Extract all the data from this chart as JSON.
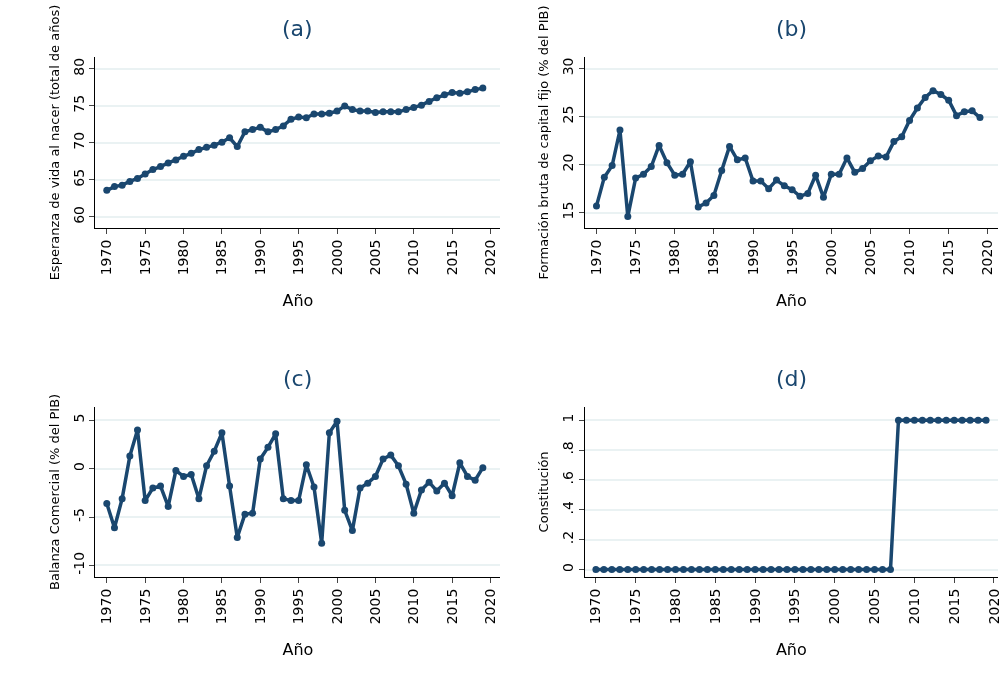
{
  "chart_data": [
    {
      "type": "line",
      "title": "(a)",
      "xlabel": "Año",
      "ylabel": "Esperanza de vida al nacer (total de años)",
      "color": "#1a476f",
      "marker": "circle",
      "grid": "y",
      "x": [
        1970,
        1971,
        1972,
        1973,
        1974,
        1975,
        1976,
        1977,
        1978,
        1979,
        1980,
        1981,
        1982,
        1983,
        1984,
        1985,
        1986,
        1987,
        1988,
        1989,
        1990,
        1991,
        1992,
        1993,
        1994,
        1995,
        1996,
        1997,
        1998,
        1999,
        2000,
        2001,
        2002,
        2003,
        2004,
        2005,
        2006,
        2007,
        2008,
        2009,
        2010,
        2011,
        2012,
        2013,
        2014,
        2015,
        2016,
        2017,
        2018,
        2019
      ],
      "values": [
        63.6,
        64.1,
        64.3,
        64.8,
        65.2,
        65.8,
        66.4,
        66.8,
        67.3,
        67.7,
        68.2,
        68.6,
        69.1,
        69.4,
        69.7,
        70.1,
        70.7,
        69.5,
        71.5,
        71.8,
        72.1,
        71.5,
        71.8,
        72.3,
        73.2,
        73.5,
        73.4,
        73.9,
        73.9,
        74.0,
        74.3,
        75.0,
        74.5,
        74.3,
        74.3,
        74.1,
        74.2,
        74.2,
        74.2,
        74.5,
        74.8,
        75.1,
        75.6,
        76.1,
        76.5,
        76.8,
        76.7,
        76.9,
        77.2,
        77.4
      ],
      "xlim": [
        1968.5,
        2021.3
      ],
      "xticks": [
        1970,
        1975,
        1980,
        1985,
        1990,
        1995,
        2000,
        2005,
        2010,
        2015,
        2020
      ],
      "ylim": [
        58.5,
        81.6
      ],
      "yticks": [
        60,
        65,
        70,
        75,
        80
      ]
    },
    {
      "type": "line",
      "title": "(b)",
      "xlabel": "Año",
      "ylabel": "Formación bruta de capital fijo (% del PIB)",
      "color": "#1a476f",
      "marker": "circle",
      "grid": "y",
      "x": [
        1970,
        1971,
        1972,
        1973,
        1974,
        1975,
        1976,
        1977,
        1978,
        1979,
        1980,
        1981,
        1982,
        1983,
        1984,
        1985,
        1986,
        1987,
        1988,
        1989,
        1990,
        1991,
        1992,
        1993,
        1994,
        1995,
        1996,
        1997,
        1998,
        1999,
        2000,
        2001,
        2002,
        2003,
        2004,
        2005,
        2006,
        2007,
        2008,
        2009,
        2010,
        2011,
        2012,
        2013,
        2014,
        2015,
        2016,
        2017,
        2018,
        2019
      ],
      "values": [
        15.7,
        18.7,
        19.9,
        23.6,
        14.6,
        18.6,
        19.0,
        19.8,
        22.0,
        20.2,
        18.9,
        19.0,
        20.3,
        15.6,
        16.0,
        16.8,
        19.4,
        21.9,
        20.5,
        20.7,
        18.3,
        18.3,
        17.5,
        18.4,
        17.8,
        17.4,
        16.7,
        17.0,
        18.9,
        16.6,
        19.0,
        19.0,
        20.7,
        19.2,
        19.6,
        20.4,
        20.9,
        20.8,
        22.4,
        22.9,
        24.6,
        25.9,
        27.0,
        27.7,
        27.3,
        26.7,
        25.1,
        25.5,
        25.6,
        24.9
      ],
      "xlim": [
        1968.5,
        2021.3
      ],
      "xticks": [
        1970,
        1975,
        1980,
        1985,
        1990,
        1995,
        2000,
        2005,
        2010,
        2015,
        2020
      ],
      "ylim": [
        13.4,
        31.2
      ],
      "yticks": [
        15,
        20,
        25,
        30
      ]
    },
    {
      "type": "line",
      "title": "(c)",
      "xlabel": "Año",
      "ylabel": "Balanza Comercial (% del PIB)",
      "color": "#1a476f",
      "marker": "circle",
      "grid": "y",
      "x": [
        1970,
        1971,
        1972,
        1973,
        1974,
        1975,
        1976,
        1977,
        1978,
        1979,
        1980,
        1981,
        1982,
        1983,
        1984,
        1985,
        1986,
        1987,
        1988,
        1989,
        1990,
        1991,
        1992,
        1993,
        1994,
        1995,
        1996,
        1997,
        1998,
        1999,
        2000,
        2001,
        2002,
        2003,
        2004,
        2005,
        2006,
        2007,
        2008,
        2009,
        2010,
        2011,
        2012,
        2013,
        2014,
        2015,
        2016,
        2017,
        2018,
        2019
      ],
      "values": [
        -3.6,
        -6.1,
        -3.1,
        1.3,
        4.0,
        -3.3,
        -2.0,
        -1.8,
        -3.9,
        -0.2,
        -0.8,
        -0.6,
        -3.1,
        0.3,
        1.8,
        3.7,
        -1.8,
        -7.1,
        -4.7,
        -4.6,
        1.0,
        2.2,
        3.6,
        -3.1,
        -3.3,
        -3.3,
        0.4,
        -1.9,
        -7.7,
        3.7,
        4.9,
        -4.3,
        -6.4,
        -2.0,
        -1.5,
        -0.8,
        1.0,
        1.4,
        0.3,
        -1.6,
        -4.6,
        -2.2,
        -1.4,
        -2.3,
        -1.5,
        -2.8,
        0.6,
        -0.8,
        -1.2,
        0.1
      ],
      "xlim": [
        1968.5,
        2021.3
      ],
      "xticks": [
        1970,
        1975,
        1980,
        1985,
        1990,
        1995,
        2000,
        2005,
        2010,
        2015,
        2020
      ],
      "ylim": [
        -11.2,
        6.4
      ],
      "yticks": [
        -10,
        -5,
        0,
        5
      ]
    },
    {
      "type": "line",
      "title": "(d)",
      "xlabel": "Año",
      "ylabel": "Constitución",
      "color": "#1a476f",
      "marker": "circle",
      "grid": "y",
      "x": [
        1970,
        1971,
        1972,
        1973,
        1974,
        1975,
        1976,
        1977,
        1978,
        1979,
        1980,
        1981,
        1982,
        1983,
        1984,
        1985,
        1986,
        1987,
        1988,
        1989,
        1990,
        1991,
        1992,
        1993,
        1994,
        1995,
        1996,
        1997,
        1998,
        1999,
        2000,
        2001,
        2002,
        2003,
        2004,
        2005,
        2006,
        2007,
        2008,
        2009,
        2010,
        2011,
        2012,
        2013,
        2014,
        2015,
        2016,
        2017,
        2018,
        2019
      ],
      "values": [
        0,
        0,
        0,
        0,
        0,
        0,
        0,
        0,
        0,
        0,
        0,
        0,
        0,
        0,
        0,
        0,
        0,
        0,
        0,
        0,
        0,
        0,
        0,
        0,
        0,
        0,
        0,
        0,
        0,
        0,
        0,
        0,
        0,
        0,
        0,
        0,
        0,
        0,
        1,
        1,
        1,
        1,
        1,
        1,
        1,
        1,
        1,
        1,
        1,
        1
      ],
      "xlim": [
        1968.6,
        2020.5
      ],
      "xticks": [
        1970,
        1975,
        1980,
        1985,
        1990,
        1995,
        2000,
        2005,
        2010,
        2015,
        2020
      ],
      "ylim": [
        -0.05,
        1.09
      ],
      "yticks": [
        0,
        {
          "value": 0.2,
          "label": ".2"
        },
        {
          "value": 0.4,
          "label": ".4"
        },
        {
          "value": 0.6,
          "label": ".6"
        },
        {
          "value": 0.8,
          "label": ".8"
        },
        1
      ]
    }
  ]
}
